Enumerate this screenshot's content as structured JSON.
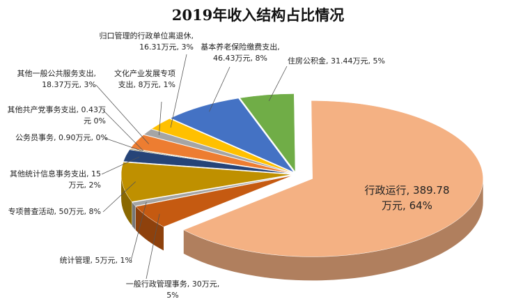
{
  "chart_data": {
    "type": "pie3d",
    "title": "2019年收入结构占比情况",
    "values": [
      31.44,
      389.78,
      30,
      5,
      50,
      15,
      0.9,
      0.43,
      18.37,
      8,
      16.31,
      46.43
    ],
    "value_labels": [
      "住房公积金, 31.44万元, 5%",
      "行政运行, 389.78万元, 64%",
      "一般行政管理事务, 30万元, 5%",
      "统计管理, 5万元, 1%",
      "专项普查活动, 50万元, 8%",
      "其他统计信息事务支出, 15万元, 2%",
      "公务员事务, 0.90万元, 0%",
      "其他共产党事务支出, 0.43万元 0%",
      "其他一般公共服务支出, 18.37万元, 3%",
      "文化产业发展专项支出, 8万元, 1%",
      "归口管理的行政单位离退休, 16.31万元, 3%",
      "基本养老保险缴费支出, 46.43万元, 8%"
    ],
    "colors": [
      "#70ad47",
      "#f4b183",
      "#c55a11",
      "#a5a5a5",
      "#bf9000",
      "#264478",
      "#7f6000",
      "#43682b",
      "#ed7d31",
      "#a5a5a5",
      "#ffc000",
      "#4472c4"
    ]
  }
}
